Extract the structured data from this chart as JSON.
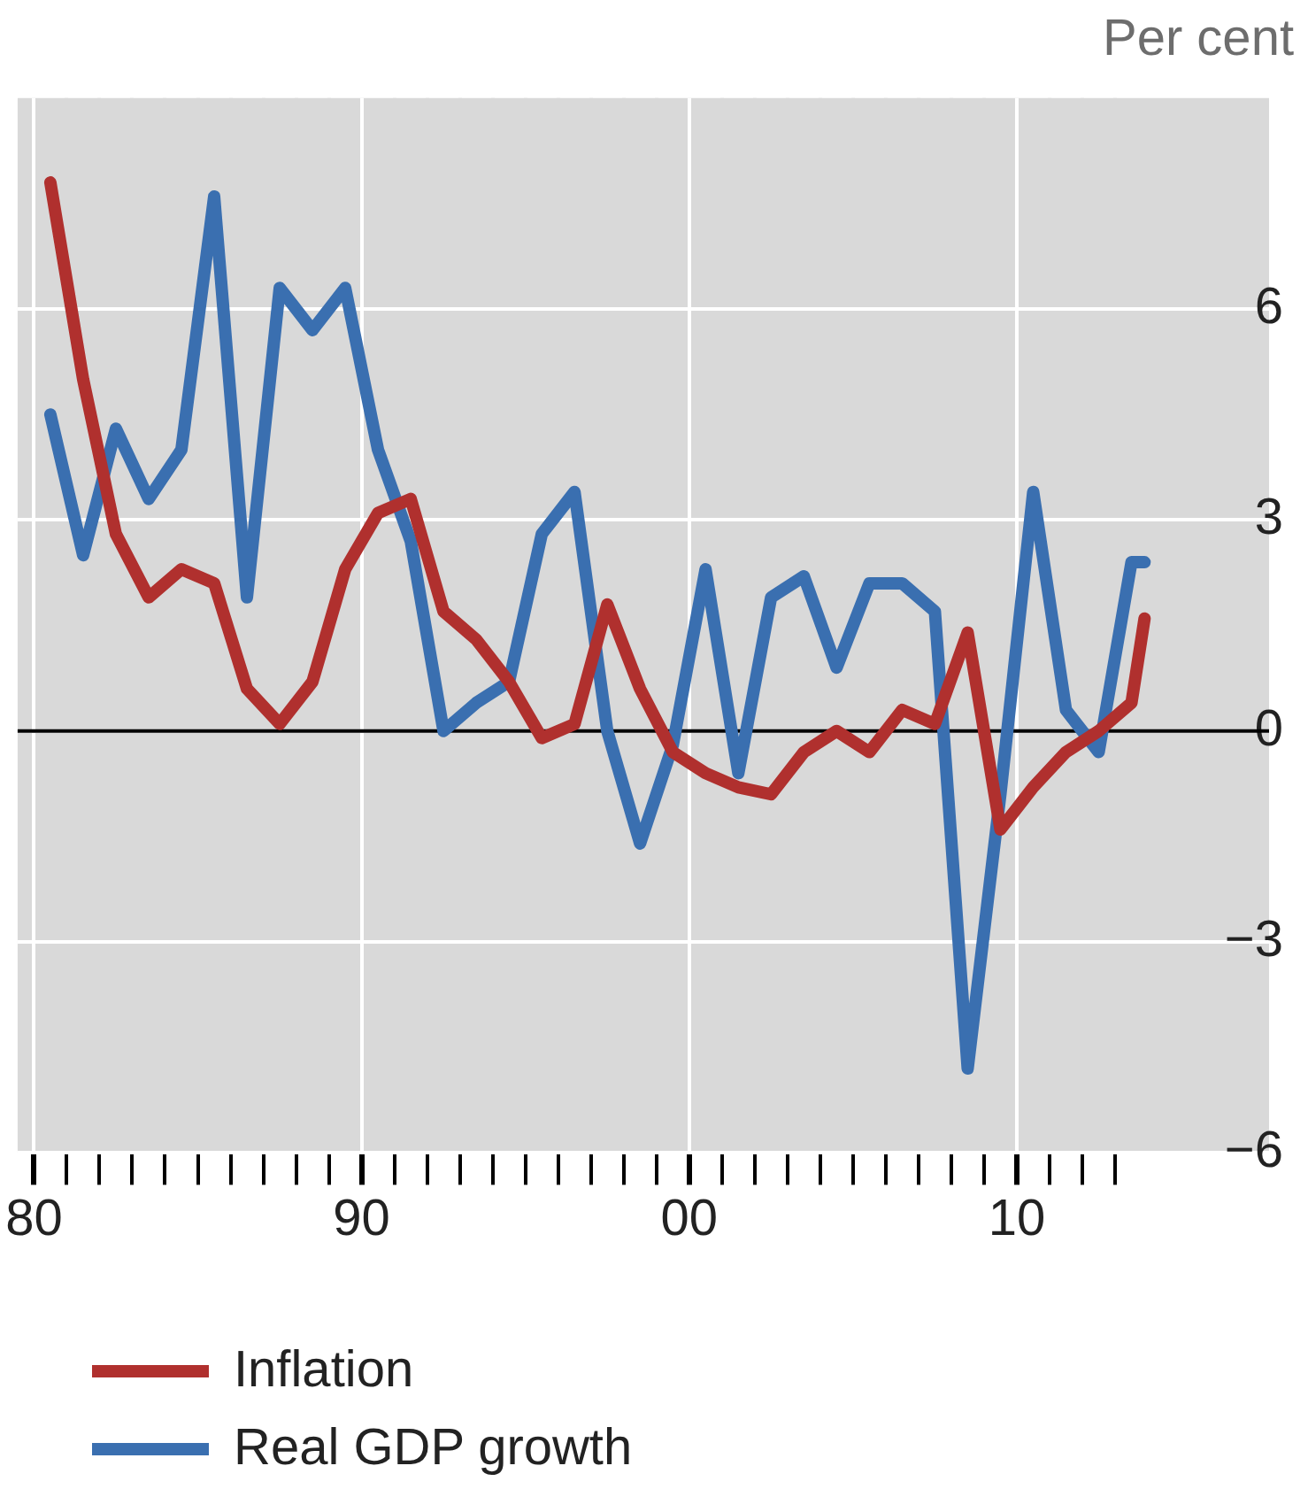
{
  "chart_data": {
    "type": "line",
    "ylabel": "Per cent",
    "x": [
      1980.5,
      1981.5,
      1982.5,
      1983.5,
      1984.5,
      1985.5,
      1986.5,
      1987.5,
      1988.5,
      1989.5,
      1990.5,
      1991.5,
      1992.5,
      1993.5,
      1994.5,
      1995.5,
      1996.5,
      1997.5,
      1998.5,
      1999.5,
      2000.5,
      2001.5,
      2002.5,
      2003.5,
      2004.5,
      2005.5,
      2006.5,
      2007.5,
      2008.5,
      2009.5,
      2010.5,
      2011.5,
      2012.5,
      2013.5,
      2013.9
    ],
    "series": [
      {
        "name": "Inflation",
        "color": "#b0302e",
        "values": [
          7.8,
          5.0,
          2.8,
          1.9,
          2.3,
          2.1,
          0.6,
          0.1,
          0.7,
          2.3,
          3.1,
          3.3,
          1.7,
          1.3,
          0.7,
          -0.1,
          0.1,
          1.8,
          0.6,
          -0.3,
          -0.6,
          -0.8,
          -0.9,
          -0.3,
          0.0,
          -0.3,
          0.3,
          0.1,
          1.4,
          -1.4,
          -0.8,
          -0.3,
          0.0,
          0.4,
          1.6
        ]
      },
      {
        "name": "Real GDP growth",
        "color": "#3a6fb0",
        "values": [
          4.5,
          2.5,
          4.3,
          3.3,
          4.0,
          7.6,
          1.9,
          6.3,
          5.7,
          6.3,
          4.0,
          2.7,
          0.0,
          0.4,
          0.7,
          2.8,
          3.4,
          0.0,
          -1.6,
          -0.2,
          2.3,
          -0.6,
          1.9,
          2.2,
          0.9,
          2.1,
          2.1,
          1.7,
          -4.8,
          -0.9,
          3.4,
          0.3,
          -0.3,
          2.4,
          2.4
        ]
      }
    ],
    "xlim": [
      1979.5,
      2017.7
    ],
    "xticks": [
      {
        "value": 1980,
        "label": "80"
      },
      {
        "value": 1981,
        "label": null
      },
      {
        "value": 1982,
        "label": null
      },
      {
        "value": 1983,
        "label": null
      },
      {
        "value": 1984,
        "label": null
      },
      {
        "value": 1985,
        "label": null
      },
      {
        "value": 1986,
        "label": null
      },
      {
        "value": 1987,
        "label": null
      },
      {
        "value": 1988,
        "label": null
      },
      {
        "value": 1989,
        "label": null
      },
      {
        "value": 1990,
        "label": "90"
      },
      {
        "value": 1991,
        "label": null
      },
      {
        "value": 1992,
        "label": null
      },
      {
        "value": 1993,
        "label": null
      },
      {
        "value": 1994,
        "label": null
      },
      {
        "value": 1995,
        "label": null
      },
      {
        "value": 1996,
        "label": null
      },
      {
        "value": 1997,
        "label": null
      },
      {
        "value": 1998,
        "label": null
      },
      {
        "value": 1999,
        "label": null
      },
      {
        "value": 2000,
        "label": "00"
      },
      {
        "value": 2001,
        "label": null
      },
      {
        "value": 2002,
        "label": null
      },
      {
        "value": 2003,
        "label": null
      },
      {
        "value": 2004,
        "label": null
      },
      {
        "value": 2005,
        "label": null
      },
      {
        "value": 2006,
        "label": null
      },
      {
        "value": 2007,
        "label": null
      },
      {
        "value": 2008,
        "label": null
      },
      {
        "value": 2009,
        "label": null
      },
      {
        "value": 2010,
        "label": "10"
      },
      {
        "value": 2011,
        "label": null
      },
      {
        "value": 2012,
        "label": null
      },
      {
        "value": 2013,
        "label": null
      }
    ],
    "ylim": [
      -6,
      9
    ],
    "yticks": [
      -6,
      -3,
      0,
      3,
      6
    ],
    "ref_lines": [
      {
        "axis": "y",
        "value": 0,
        "color": "#000000"
      }
    ],
    "grid": true,
    "legend": "bottom left",
    "marker": "none",
    "line_style": "solid"
  }
}
